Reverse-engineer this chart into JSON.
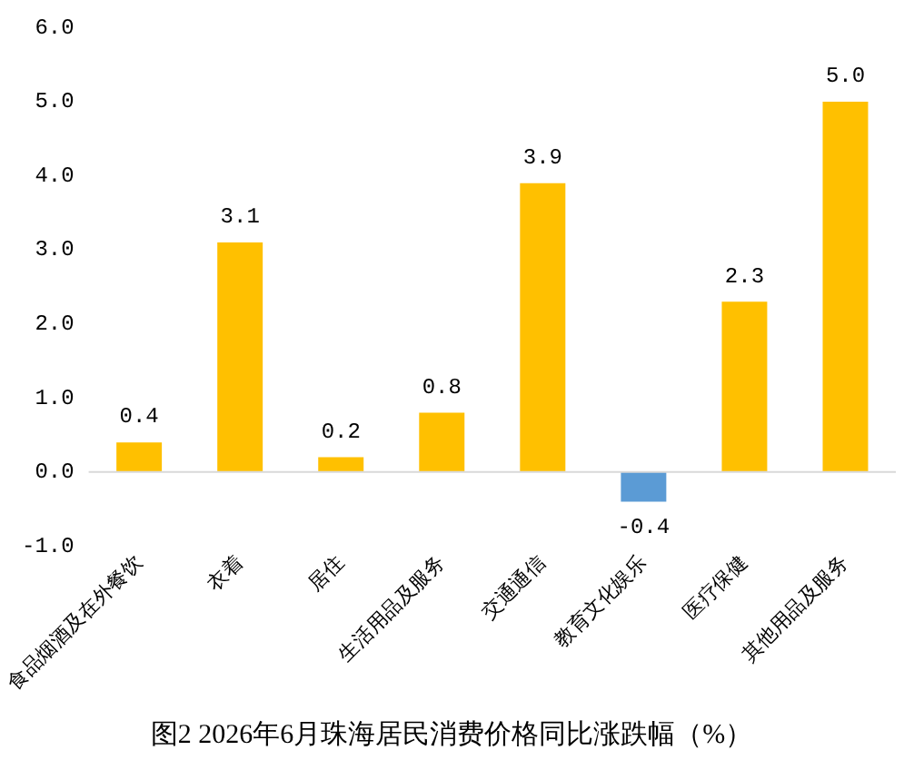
{
  "chart_data": {
    "type": "bar",
    "title": "图2 2026年6月珠海居民消费价格同比涨跌幅（%）",
    "categories": [
      "食品烟酒及在外餐饮",
      "衣着",
      "居住",
      "生活用品及服务",
      "交通通信",
      "教育文化娱乐",
      "医疗保健",
      "其他用品及服务"
    ],
    "values": [
      0.4,
      3.1,
      0.2,
      0.8,
      3.9,
      -0.4,
      2.3,
      5.0
    ],
    "colors": [
      "#ffc000",
      "#ffc000",
      "#ffc000",
      "#ffc000",
      "#ffc000",
      "#5b9bd5",
      "#ffc000",
      "#ffc000"
    ],
    "ylim": [
      -1,
      6
    ],
    "yticks": [
      {
        "value": -1,
        "label": "-1.0"
      },
      {
        "value": 0,
        "label": "0.0"
      },
      {
        "value": 1,
        "label": "1.0"
      },
      {
        "value": 2,
        "label": "2.0"
      },
      {
        "value": 3,
        "label": "3.0"
      },
      {
        "value": 4,
        "label": "4.0"
      },
      {
        "value": 5,
        "label": "5.0"
      },
      {
        "value": 6,
        "label": "6.0"
      }
    ],
    "value_labels": [
      "0.4",
      "3.1",
      "0.2",
      "0.8",
      "3.9",
      "-0.4",
      "2.3",
      "5.0"
    ],
    "ref_lines": [
      {
        "axis": "y",
        "value": 0,
        "color": "#d9d9d9"
      }
    ],
    "grid": false,
    "legend": false
  }
}
